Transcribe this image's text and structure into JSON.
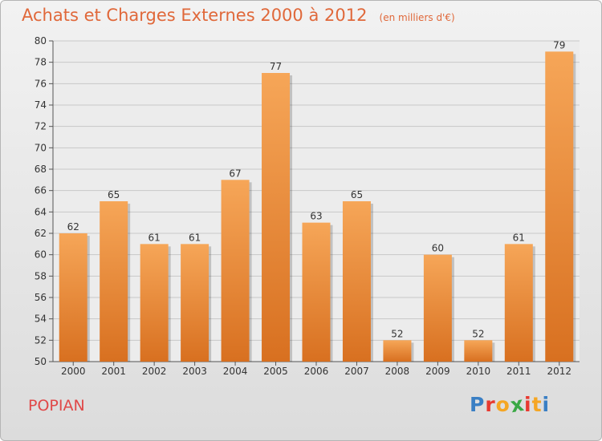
{
  "header": {
    "title": "Achats et Charges Externes 2000 à 2012",
    "unit": "(en milliers d'€)"
  },
  "footer": {
    "place": "POPIAN",
    "brand_letters": [
      "P",
      "r",
      "o",
      "x",
      "i",
      "t",
      "i"
    ]
  },
  "colors": {
    "title": "#e0683a",
    "place": "#e04848",
    "bar_light": "#f6a658",
    "bar_dark": "#d87020",
    "brand": [
      "#3a7fc4",
      "#e83a30",
      "#f5a623",
      "#3aa844",
      "#e83a30",
      "#f5a623",
      "#3a7fc4"
    ]
  },
  "chart_data": {
    "type": "bar",
    "title": "Achats et Charges Externes 2000 à 2012",
    "subtitle": "(en milliers d'€)",
    "xlabel": "",
    "ylabel": "",
    "categories": [
      "2000",
      "2001",
      "2002",
      "2003",
      "2004",
      "2005",
      "2006",
      "2007",
      "2008",
      "2009",
      "2010",
      "2011",
      "2012"
    ],
    "values": [
      62,
      65,
      61,
      61,
      67,
      77,
      63,
      65,
      52,
      60,
      52,
      61,
      79
    ],
    "ylim": [
      50,
      80
    ],
    "yticks": [
      50,
      52,
      54,
      56,
      58,
      60,
      62,
      64,
      66,
      68,
      70,
      72,
      74,
      76,
      78,
      80
    ],
    "grid": true
  }
}
